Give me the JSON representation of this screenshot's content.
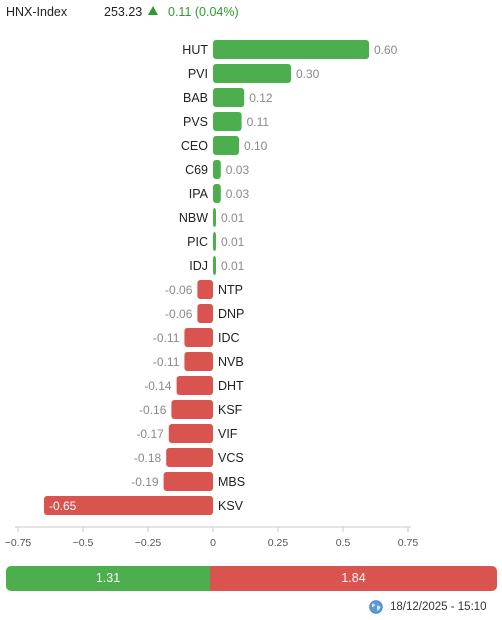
{
  "header": {
    "index_name": "HNX-Index",
    "index_value": "253.23",
    "change": "0.11 (0.04%)",
    "direction_icon": "up-triangle-icon"
  },
  "chart_data": {
    "type": "bar",
    "orientation": "horizontal",
    "categories": [
      "HUT",
      "PVI",
      "BAB",
      "PVS",
      "CEO",
      "C69",
      "IPA",
      "NBW",
      "PIC",
      "IDJ",
      "NTP",
      "DNP",
      "IDC",
      "NVB",
      "DHT",
      "KSF",
      "VIF",
      "VCS",
      "MBS",
      "KSV"
    ],
    "values": [
      0.6,
      0.3,
      0.12,
      0.11,
      0.1,
      0.03,
      0.03,
      0.01,
      0.01,
      0.01,
      -0.06,
      -0.06,
      -0.11,
      -0.11,
      -0.14,
      -0.16,
      -0.17,
      -0.18,
      -0.19,
      -0.65
    ],
    "value_labels": [
      "0.60",
      "0.30",
      "0.12",
      "0.11",
      "0.10",
      "0.03",
      "0.03",
      "0.01",
      "0.01",
      "0.01",
      "-0.06",
      "-0.06",
      "-0.11",
      "-0.11",
      "-0.14",
      "-0.16",
      "-0.17",
      "-0.18",
      "-0.19",
      "-0.65"
    ],
    "xlim": [
      -0.8,
      0.8
    ],
    "xticks": [
      -0.75,
      -0.5,
      -0.25,
      0,
      0.25,
      0.5,
      0.75
    ],
    "xtick_labels": [
      "−0.75",
      "−0.5",
      "−0.25",
      "0",
      "0.25",
      "0.5",
      "0.75"
    ],
    "grid": false,
    "colors": {
      "positive": "#4cae4c",
      "negative": "#d9534f"
    }
  },
  "totals": {
    "up_value": "1.31",
    "down_value": "1.84",
    "up_share": 0.416
  },
  "footer": {
    "timestamp": "18/12/2025 - 15:10",
    "icon": "globe-icon"
  }
}
